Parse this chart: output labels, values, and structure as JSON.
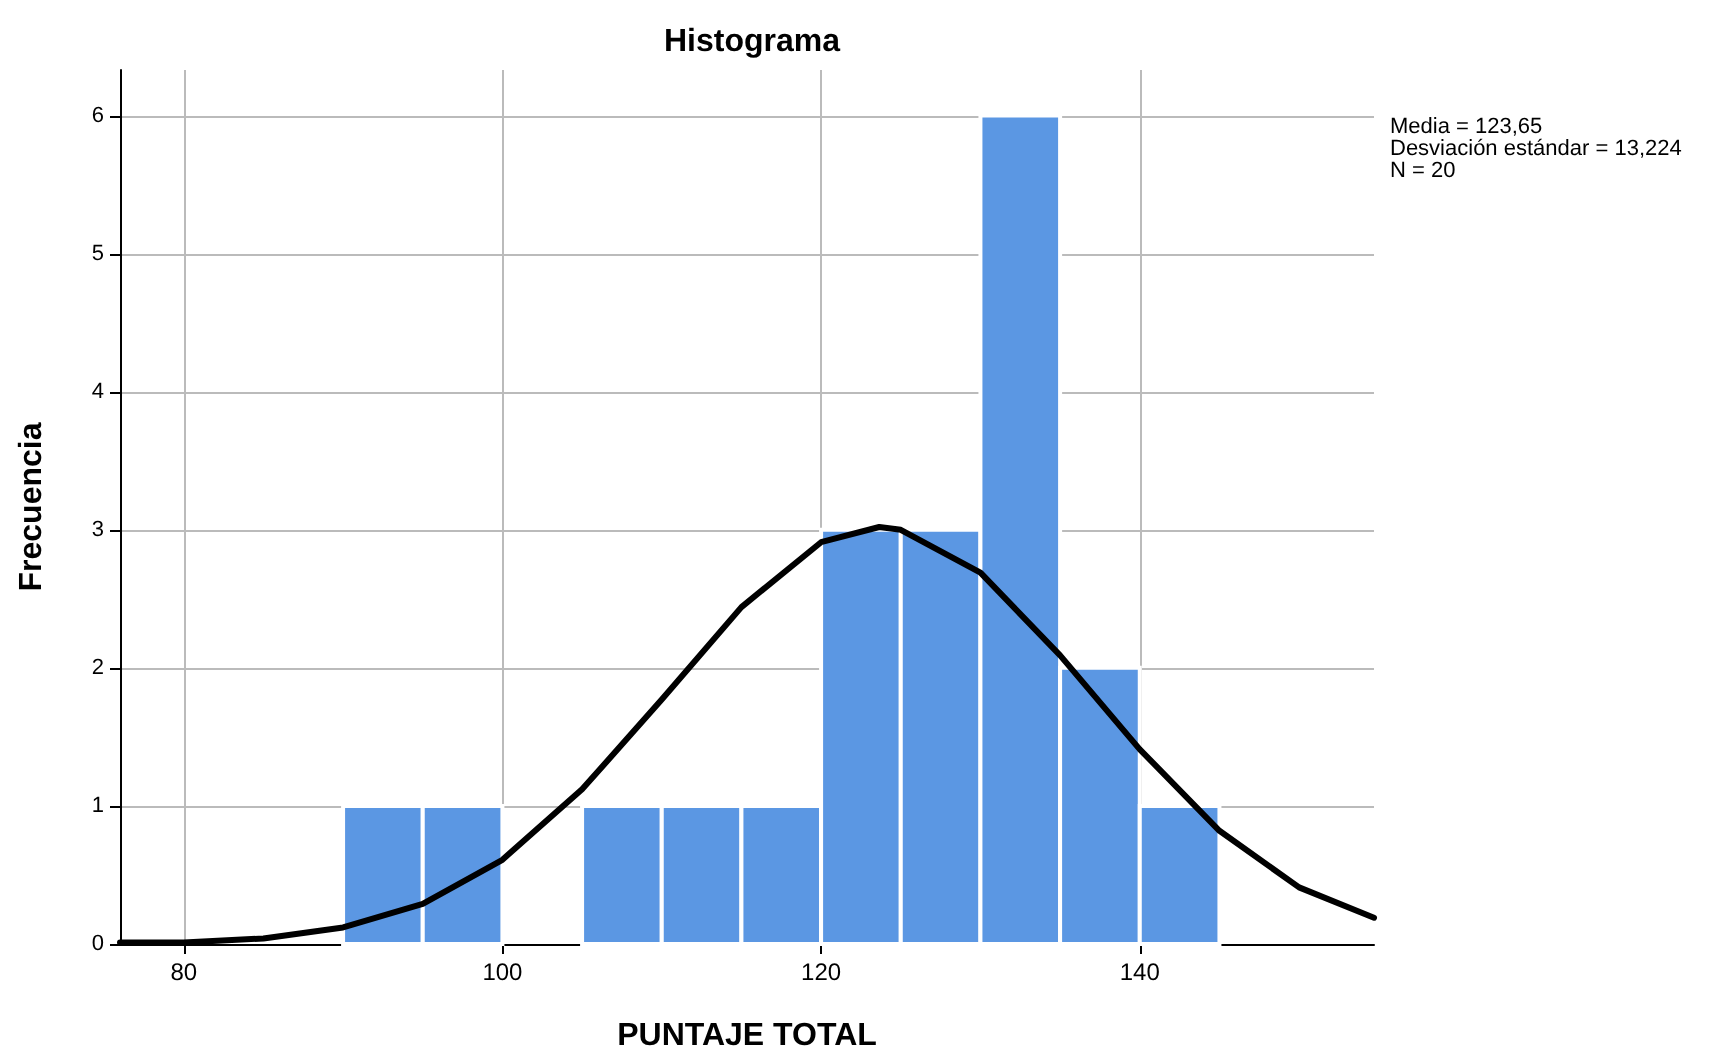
{
  "chart_data": {
    "type": "histogram",
    "title": "Histograma",
    "xlabel": "PUNTAJE TOTAL",
    "ylabel": "Frecuencia",
    "bins": [
      90,
      95,
      100,
      105,
      110,
      115,
      120,
      125,
      130,
      135,
      140,
      145
    ],
    "values": [
      1,
      1,
      0,
      1,
      1,
      1,
      3,
      3,
      6,
      2,
      1
    ],
    "color": "#5b97e3",
    "series": [
      {
        "type": "line",
        "color": "#000000",
        "x": [
          76,
          80,
          85,
          90,
          95,
          100,
          105,
          110,
          115,
          120,
          123.65,
          125,
          130,
          135,
          140,
          145,
          150,
          154.7
        ],
        "values": [
          0.01,
          0.01,
          0.04,
          0.12,
          0.29,
          0.61,
          1.12,
          1.77,
          2.44,
          2.91,
          3.02,
          3.0,
          2.69,
          2.09,
          1.41,
          0.82,
          0.41,
          0.19
        ]
      }
    ],
    "xlim": [
      76,
      154.7
    ],
    "xticks": [
      80,
      100,
      120,
      140
    ],
    "ylim": [
      0,
      6.33
    ],
    "yticks": [
      0,
      1,
      2,
      3,
      4,
      5,
      6
    ],
    "grid": true,
    "marker": "none",
    "line_style": "solid",
    "annotations": [
      "Media = 123,65",
      "Desviación estándar = 13,224",
      "N = 20"
    ]
  }
}
